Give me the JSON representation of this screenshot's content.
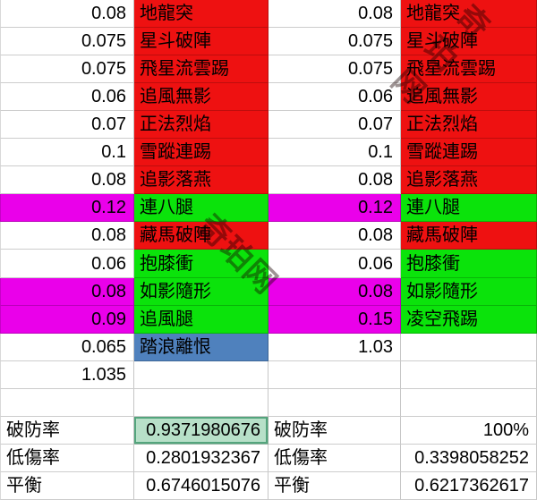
{
  "app": {
    "description": "spreadsheet comparison of two skill rate tables"
  },
  "colors": {
    "red": "#ee1111",
    "green": "#0be30b",
    "magenta": "#ea00ea",
    "blue": "#4f81bd",
    "hl": "#b7e0c8",
    "hlborder": "#54a57d"
  },
  "watermark": {
    "text": "奇珀网"
  },
  "grid": {
    "columns": [
      "left-rate",
      "left-skill",
      "right-rate",
      "right-skill"
    ],
    "rows": [
      {
        "cells": [
          {
            "t": "0.08",
            "al": "r"
          },
          {
            "t": "地龍突",
            "bg": "red",
            "al": "l"
          },
          {
            "t": "0.08",
            "al": "r"
          },
          {
            "t": "地龍突",
            "bg": "red",
            "al": "l"
          }
        ]
      },
      {
        "cells": [
          {
            "t": "0.075",
            "al": "r"
          },
          {
            "t": "星斗破陣",
            "bg": "red",
            "al": "l"
          },
          {
            "t": "0.075",
            "al": "r"
          },
          {
            "t": "星斗破陣",
            "bg": "red",
            "al": "l"
          }
        ]
      },
      {
        "cells": [
          {
            "t": "0.075",
            "al": "r"
          },
          {
            "t": "飛星流雲踢",
            "bg": "red",
            "al": "l"
          },
          {
            "t": "0.075",
            "al": "r"
          },
          {
            "t": "飛星流雲踢",
            "bg": "red",
            "al": "l"
          }
        ]
      },
      {
        "cells": [
          {
            "t": "0.06",
            "al": "r"
          },
          {
            "t": "追風無影",
            "bg": "red",
            "al": "l"
          },
          {
            "t": "0.06",
            "al": "r"
          },
          {
            "t": "追風無影",
            "bg": "red",
            "al": "l"
          }
        ]
      },
      {
        "cells": [
          {
            "t": "0.07",
            "al": "r"
          },
          {
            "t": "正法烈焰",
            "bg": "red",
            "al": "l"
          },
          {
            "t": "0.07",
            "al": "r"
          },
          {
            "t": "正法烈焰",
            "bg": "red",
            "al": "l"
          }
        ]
      },
      {
        "cells": [
          {
            "t": "0.1",
            "al": "r"
          },
          {
            "t": "雪蹤連踢",
            "bg": "red",
            "al": "l"
          },
          {
            "t": "0.1",
            "al": "r"
          },
          {
            "t": "雪蹤連踢",
            "bg": "red",
            "al": "l"
          }
        ]
      },
      {
        "cells": [
          {
            "t": "0.08",
            "al": "r"
          },
          {
            "t": "追影落燕",
            "bg": "red",
            "al": "l"
          },
          {
            "t": "0.08",
            "al": "r"
          },
          {
            "t": "追影落燕",
            "bg": "red",
            "al": "l"
          }
        ]
      },
      {
        "cells": [
          {
            "t": "0.12",
            "bg": "magenta",
            "al": "r"
          },
          {
            "t": "連八腿",
            "bg": "green",
            "al": "l"
          },
          {
            "t": "0.12",
            "bg": "magenta",
            "al": "r"
          },
          {
            "t": "連八腿",
            "bg": "green",
            "al": "l"
          }
        ]
      },
      {
        "cells": [
          {
            "t": "0.08",
            "al": "r"
          },
          {
            "t": "藏馬破陣",
            "bg": "red",
            "al": "l"
          },
          {
            "t": "0.08",
            "al": "r"
          },
          {
            "t": "藏馬破陣",
            "bg": "red",
            "al": "l"
          }
        ]
      },
      {
        "cells": [
          {
            "t": "0.06",
            "al": "r"
          },
          {
            "t": "抱膝衝",
            "bg": "green",
            "al": "l"
          },
          {
            "t": "0.06",
            "al": "r"
          },
          {
            "t": "抱膝衝",
            "bg": "green",
            "al": "l"
          }
        ]
      },
      {
        "cells": [
          {
            "t": "0.08",
            "bg": "magenta",
            "al": "r"
          },
          {
            "t": "如影隨形",
            "bg": "green",
            "al": "l"
          },
          {
            "t": "0.08",
            "bg": "magenta",
            "al": "r"
          },
          {
            "t": "如影隨形",
            "bg": "green",
            "al": "l"
          }
        ]
      },
      {
        "cells": [
          {
            "t": "0.09",
            "bg": "magenta",
            "al": "r"
          },
          {
            "t": "追風腿",
            "bg": "green",
            "al": "l"
          },
          {
            "t": "0.15",
            "bg": "magenta",
            "al": "r"
          },
          {
            "t": "凌空飛踢",
            "bg": "green",
            "al": "l"
          }
        ]
      },
      {
        "cells": [
          {
            "t": "0.065",
            "al": "r"
          },
          {
            "t": "踏浪離恨",
            "bg": "blue",
            "al": "l"
          },
          {
            "t": "1.03",
            "al": "r"
          },
          {
            "t": "",
            "al": "l"
          }
        ]
      },
      {
        "cells": [
          {
            "t": "1.035",
            "al": "r"
          },
          {
            "t": "",
            "al": "l"
          },
          {
            "t": "",
            "al": "r"
          },
          {
            "t": "",
            "al": "l"
          }
        ]
      },
      {
        "cells": [
          {
            "t": "",
            "al": "r"
          },
          {
            "t": "",
            "al": "l"
          },
          {
            "t": "",
            "al": "r"
          },
          {
            "t": "",
            "al": "l"
          }
        ]
      },
      {
        "cells": [
          {
            "t": "破防率",
            "al": "l"
          },
          {
            "t": "0.9371980676",
            "bg": "hl",
            "al": "r"
          },
          {
            "t": "破防率",
            "al": "l"
          },
          {
            "t": "100%",
            "al": "r"
          }
        ]
      },
      {
        "cells": [
          {
            "t": "低傷率",
            "al": "l"
          },
          {
            "t": "0.2801932367",
            "al": "r"
          },
          {
            "t": "低傷率",
            "al": "l"
          },
          {
            "t": "0.3398058252",
            "al": "r"
          }
        ]
      },
      {
        "cells": [
          {
            "t": "平衡",
            "al": "l"
          },
          {
            "t": "0.6746015076",
            "al": "r"
          },
          {
            "t": "平衡",
            "al": "l"
          },
          {
            "t": "0.6217362617",
            "al": "r"
          }
        ]
      }
    ]
  }
}
